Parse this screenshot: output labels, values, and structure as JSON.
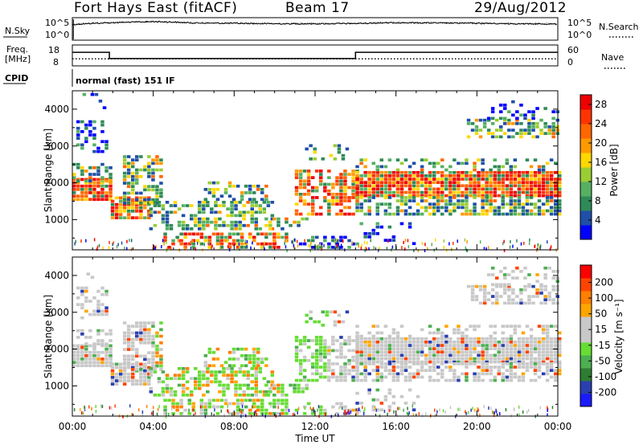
{
  "header": {
    "station_title": "Fort Hays East (fitACF)",
    "beam": "Beam 17",
    "date": "29/Aug/2012"
  },
  "strip": {
    "nsky_label": "N.Sky",
    "nsearch_label": "N.Search",
    "noise_ticks_left": [
      "10^5",
      "10^0"
    ],
    "noise_ticks_right": [
      "10^5",
      "10^0"
    ],
    "freq_label_1": "Freq.",
    "freq_label_2": "[MHz]",
    "freq_ticks": [
      "18",
      "8"
    ],
    "nave_label": "Nave",
    "nave_ticks": [
      "60",
      "0"
    ],
    "cpid_label": "CPID",
    "cpid_text": "normal (fast) 151 IF"
  },
  "colors": {
    "power_scale": [
      "#0000ff",
      "#1f4fa8",
      "#2e8b57",
      "#55b062",
      "#9acd32",
      "#ffd700",
      "#ff9900",
      "#ff6600",
      "#ff3300",
      "#ee0000"
    ],
    "velocity_scale": [
      "#1a1aff",
      "#2a3fb0",
      "#2e7d32",
      "#4caf50",
      "#66dd33",
      "#c8c8c8",
      "#c8c8c8",
      "#ffa500",
      "#ff7f00",
      "#ff4400",
      "#ff0000"
    ]
  },
  "chart_data": [
    {
      "type": "line",
      "panel": "noise",
      "series": [
        {
          "name": "N.Sky",
          "x": [
            "00:00",
            "02:00",
            "04:00",
            "06:00",
            "08:00",
            "10:00",
            "12:00",
            "14:00",
            "16:00",
            "18:00",
            "20:00",
            "22:00",
            "24:00"
          ],
          "values": [
            8000,
            30000,
            60000,
            25000,
            20000,
            15000,
            15000,
            18000,
            30000,
            25000,
            20000,
            15000,
            12000
          ]
        },
        {
          "name": "N.Search",
          "x": [
            "00:00",
            "02:00",
            "04:00",
            "06:00",
            "08:00",
            "10:00",
            "12:00",
            "14:00",
            "16:00",
            "18:00",
            "20:00",
            "22:00",
            "24:00"
          ],
          "values": [
            10000,
            35000,
            70000,
            30000,
            25000,
            18000,
            18000,
            20000,
            35000,
            30000,
            25000,
            18000,
            15000
          ]
        }
      ],
      "ylim": [
        1,
        100000
      ],
      "log_scale": true
    },
    {
      "type": "line",
      "panel": "frequency-nave",
      "series": [
        {
          "name": "Freq.",
          "x": [
            "00:00",
            "01:50",
            "01:50",
            "14:00",
            "14:00",
            "24:00"
          ],
          "values": [
            14.5,
            14.5,
            11.5,
            11.5,
            14.5,
            14.5
          ]
        },
        {
          "name": "Nave",
          "x": [
            "00:00",
            "01:50",
            "01:50",
            "14:00",
            "14:00",
            "24:00"
          ],
          "values": [
            20,
            20,
            20,
            20,
            20,
            20
          ]
        }
      ],
      "ylim_freq": [
        8,
        18
      ],
      "ylim_nave": [
        0,
        60
      ]
    },
    {
      "type": "heatmap",
      "panel": "power",
      "xlabel": "Time UT",
      "ylabel": "Slant Range [km]",
      "x_ticks": [
        "00:00",
        "04:00",
        "08:00",
        "12:00",
        "16:00",
        "20:00",
        "00:00"
      ],
      "y_ticks": [
        "1000",
        "2000",
        "3000",
        "4000"
      ],
      "xlim_hours": [
        0,
        24
      ],
      "ylim_km": [
        180,
        4500
      ],
      "colorbar_label": "Power [dB]",
      "colorbar_ticks": [
        "4",
        "8",
        "12",
        "16",
        "20",
        "24",
        "28"
      ],
      "colorbar_range": [
        0,
        30
      ]
    },
    {
      "type": "heatmap",
      "panel": "velocity",
      "xlabel": "Time UT",
      "ylabel": "Slant Range [km]",
      "x_ticks": [
        "00:00",
        "04:00",
        "08:00",
        "12:00",
        "16:00",
        "20:00",
        "00:00"
      ],
      "y_ticks": [
        "1000",
        "2000",
        "3000",
        "4000"
      ],
      "xlim_hours": [
        0,
        24
      ],
      "ylim_km": [
        180,
        4500
      ],
      "colorbar_label": "Velocity [m s⁻¹]",
      "colorbar_ticks": [
        "200",
        "100",
        "50",
        "15",
        "-15",
        "-50",
        "-100",
        "-200"
      ],
      "colorbar_range": [
        -250,
        250
      ]
    }
  ],
  "xaxis_title": "Time UT"
}
